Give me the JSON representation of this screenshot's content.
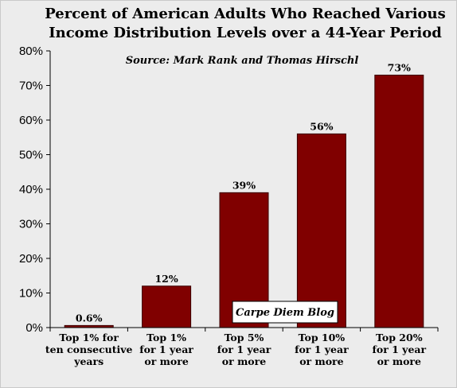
{
  "chart_data": {
    "type": "bar",
    "title": [
      "Percent of American Adults Who Reached Various",
      "Income Distribution Levels over a 44-Year Period"
    ],
    "subtitle": "Source: Mark Rank and Thomas Hirschl",
    "watermark": "Carpe Diem Blog",
    "categories": [
      [
        "Top 1% for",
        "ten consecutive",
        "years"
      ],
      [
        "Top 1%",
        "for 1 year",
        "or more"
      ],
      [
        "Top 5%",
        "for 1 year",
        "or more"
      ],
      [
        "Top 10%",
        "for 1 year",
        "or more"
      ],
      [
        "Top 20%",
        "for 1 year",
        "or more"
      ]
    ],
    "values": [
      0.6,
      12,
      39,
      56,
      73
    ],
    "data_labels": [
      "0.6%",
      "12%",
      "39%",
      "56%",
      "73%"
    ],
    "ylim": [
      0,
      80
    ],
    "yticks": [
      "0%",
      "10%",
      "20%",
      "30%",
      "40%",
      "50%",
      "60%",
      "70%",
      "80%"
    ],
    "xlabel": "",
    "ylabel": "",
    "grid": false,
    "legend": "none",
    "colors": {
      "bar": "#800000",
      "bar_border": "#3a0000",
      "background": "#ececec"
    }
  }
}
